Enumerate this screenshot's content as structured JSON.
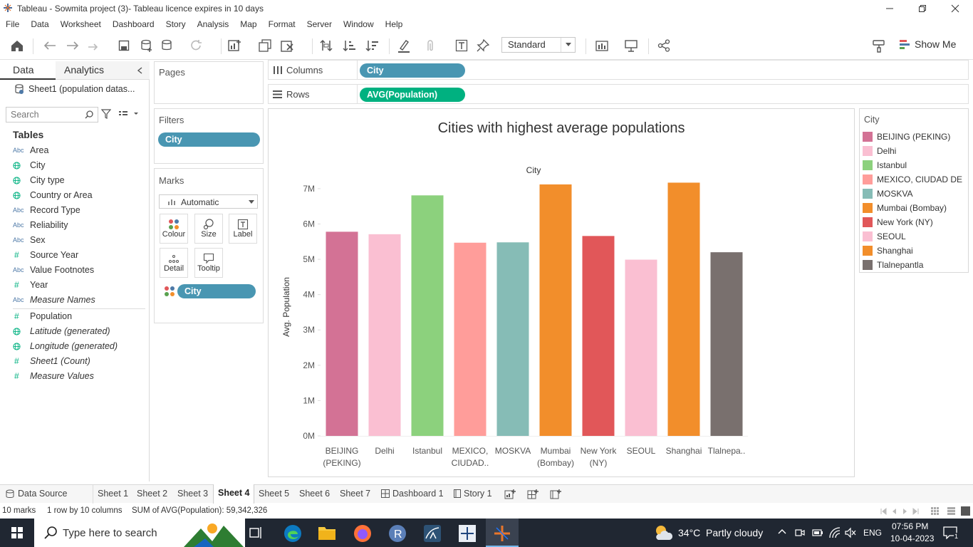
{
  "window": {
    "title": "Tableau - Sowmita project (3)- Tableau licence expires in 10 days"
  },
  "menu": [
    "File",
    "Data",
    "Worksheet",
    "Dashboard",
    "Story",
    "Analysis",
    "Map",
    "Format",
    "Server",
    "Window",
    "Help"
  ],
  "toolbar": {
    "fit_select": "Standard",
    "show_me": "Show Me"
  },
  "data_pane": {
    "tabs": {
      "data": "Data",
      "analytics": "Analytics"
    },
    "source": "Sheet1 (population datas...",
    "search_placeholder": "Search",
    "tables_heading": "Tables",
    "fields": [
      {
        "type": "Abc",
        "name": "Area"
      },
      {
        "type": "globe",
        "name": "City"
      },
      {
        "type": "globe",
        "name": "City type"
      },
      {
        "type": "globe",
        "name": "Country or Area"
      },
      {
        "type": "Abc",
        "name": "Record Type"
      },
      {
        "type": "Abc",
        "name": "Reliability"
      },
      {
        "type": "Abc",
        "name": "Sex"
      },
      {
        "type": "#",
        "name": "Source Year"
      },
      {
        "type": "Abc",
        "name": "Value Footnotes"
      },
      {
        "type": "#",
        "name": "Year"
      },
      {
        "type": "Abc",
        "name": "Measure Names",
        "italic": true
      },
      {
        "type": "#",
        "name": "Population"
      },
      {
        "type": "globe",
        "name": "Latitude (generated)",
        "italic": true
      },
      {
        "type": "globe",
        "name": "Longitude (generated)",
        "italic": true
      },
      {
        "type": "#",
        "name": "Sheet1 (Count)",
        "italic": true
      },
      {
        "type": "#",
        "name": "Measure Values",
        "italic": true
      }
    ]
  },
  "shelves": {
    "pages": "Pages",
    "filters": "Filters",
    "filter_pill": "City",
    "marks": "Marks",
    "mark_type": "Automatic",
    "mark_buttons": [
      "Colour",
      "Size",
      "Label",
      "Detail",
      "Tooltip"
    ],
    "mark_pill": "City",
    "columns_label": "Columns",
    "columns_pill": "City",
    "rows_label": "Rows",
    "rows_pill": "AVG(Population)"
  },
  "chart_data": {
    "type": "bar",
    "title": "Cities with highest average populations",
    "xlabel": "City",
    "ylabel": "Avg. Population",
    "ylim": [
      0,
      7300000
    ],
    "yticks": [
      "0M",
      "1M",
      "2M",
      "3M",
      "4M",
      "5M",
      "6M",
      "7M"
    ],
    "categories": [
      "BEIJING (PEKING)",
      "Delhi",
      "Istanbul",
      "MEXICO, CIUDAD DE",
      "MOSKVA",
      "Mumbai (Bombay)",
      "New York (NY)",
      "SEOUL",
      "Shanghai",
      "Tlalnepantla"
    ],
    "category_labels": [
      [
        "BEIJING",
        "(PEKING)"
      ],
      [
        "Delhi"
      ],
      [
        "Istanbul"
      ],
      [
        "MEXICO,",
        "CIUDAD.."
      ],
      [
        "MOSKVA"
      ],
      [
        "Mumbai",
        "(Bombay)"
      ],
      [
        "New York",
        "(NY)"
      ],
      [
        "SEOUL"
      ],
      [
        "Shanghai"
      ],
      [
        "Tlalnepa.."
      ]
    ],
    "values": [
      5780000,
      5710000,
      6810000,
      5470000,
      5480000,
      7120000,
      5660000,
      4990000,
      7170000,
      5200000
    ],
    "colors": [
      "#d37295",
      "#fabfd2",
      "#8cd17d",
      "#ff9d9a",
      "#86bcb6",
      "#f28e2b",
      "#e15759",
      "#fabfd2",
      "#f28e2b",
      "#79706e"
    ],
    "grid": false
  },
  "legend": {
    "title": "City",
    "items": [
      {
        "label": "BEIJING (PEKING)",
        "color": "#d37295"
      },
      {
        "label": "Delhi",
        "color": "#fabfd2"
      },
      {
        "label": "Istanbul",
        "color": "#8cd17d"
      },
      {
        "label": "MEXICO, CIUDAD DE",
        "color": "#ff9d9a"
      },
      {
        "label": "MOSKVA",
        "color": "#86bcb6"
      },
      {
        "label": "Mumbai (Bombay)",
        "color": "#f28e2b"
      },
      {
        "label": "New York (NY)",
        "color": "#e15759"
      },
      {
        "label": "SEOUL",
        "color": "#fabfd2"
      },
      {
        "label": "Shanghai",
        "color": "#f28e2b"
      },
      {
        "label": "Tlalnepantla",
        "color": "#79706e"
      }
    ]
  },
  "sheet_tabs": {
    "data_source": "Data Source",
    "sheets": [
      "Sheet 1",
      "Sheet 2",
      "Sheet 3",
      "Sheet 4",
      "Sheet 5",
      "Sheet 6",
      "Sheet 7"
    ],
    "active": "Sheet 4",
    "dashboard": "Dashboard 1",
    "story": "Story 1"
  },
  "status": {
    "marks": "10 marks",
    "rows_cols": "1 row by 10 columns",
    "sum": "SUM of AVG(Population): 59,342,326"
  },
  "taskbar": {
    "search_placeholder": "Type here to search",
    "weather": "34°C  Partly cloudy",
    "lang": "ENG",
    "time": "07:56 PM",
    "date": "10-04-2023",
    "notifications": "1"
  }
}
